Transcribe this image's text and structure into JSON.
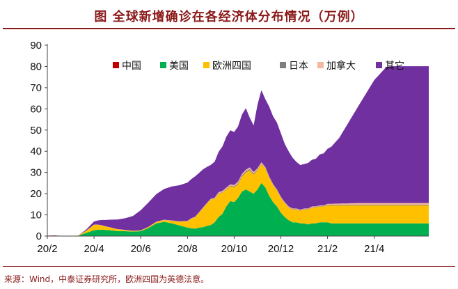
{
  "title": "图 全球新增确诊在各经济体分布情况（万例）",
  "source": "来源：Wind，中泰证券研究所，欧洲四国为英德法意。",
  "chart_data": {
    "type": "area",
    "stacked": true,
    "title": "图 全球新增确诊在各经济体分布情况（万例）",
    "ylim": [
      0,
      90
    ],
    "yticks": [
      0,
      10,
      20,
      30,
      40,
      50,
      60,
      70,
      80,
      90
    ],
    "xtick_labels": [
      "20/2",
      "20/4",
      "20/6",
      "20/8",
      "20/10",
      "20/12",
      "21/2",
      "21/4"
    ],
    "legend_position": "top",
    "x": [
      0,
      0.5,
      1,
      1.5,
      2,
      2.5,
      3,
      3.25,
      3.5,
      3.75,
      4,
      4.5,
      5,
      5.5,
      6,
      6.5,
      7,
      7.5,
      8,
      8.5,
      9,
      9.25,
      9.5,
      9.75,
      10,
      10.25,
      10.5,
      10.75,
      11,
      11.25,
      11.5,
      11.75,
      12,
      12.25,
      12.5,
      12.75,
      13,
      13.25,
      13.5,
      13.75,
      14,
      14.25,
      14.5,
      14.75,
      15,
      15.25,
      15.5,
      15.75,
      16,
      16.25,
      16.5,
      16.75,
      17,
      17.25,
      17.5,
      17.75,
      18,
      18.25,
      18.5,
      18.75,
      19,
      19.25,
      19.5,
      19.75,
      20,
      20.25,
      20.5,
      20.75,
      21,
      21.25,
      21.5,
      21.75,
      22,
      22.25,
      22.5,
      22.75,
      23,
      23.25,
      23.5,
      23.75,
      24,
      24.25,
      24.5
    ],
    "series": [
      {
        "name": "中国",
        "color": "#c00000",
        "values": [
          0.2,
          0.3,
          0.1,
          0,
          0,
          0,
          0,
          0,
          0,
          0,
          0,
          0,
          0,
          0,
          0,
          0,
          0,
          0,
          0,
          0,
          0,
          0,
          0,
          0,
          0,
          0,
          0,
          0,
          0,
          0,
          0,
          0,
          0,
          0,
          0,
          0,
          0,
          0,
          0,
          0,
          0,
          0,
          0,
          0,
          0,
          0,
          0,
          0,
          0,
          0,
          0,
          0,
          0,
          0,
          0,
          0,
          0,
          0,
          0,
          0,
          0,
          0,
          0,
          0,
          0,
          0,
          0,
          0,
          0,
          0,
          0,
          0,
          0,
          0,
          0,
          0,
          0,
          0,
          0,
          0,
          0,
          0,
          0
        ]
      },
      {
        "name": "美国",
        "color": "#00b050",
        "values": [
          0,
          0,
          0,
          0,
          0.2,
          1.5,
          2.8,
          3.0,
          3.0,
          2.9,
          2.8,
          2.4,
          2.3,
          2.1,
          2.3,
          3.8,
          6.0,
          6.7,
          6.0,
          5.0,
          4.0,
          3.7,
          3.5,
          4.0,
          4.2,
          4.8,
          5.2,
          6.5,
          9.0,
          10.5,
          14.0,
          16.5,
          16.0,
          18.0,
          21.0,
          22.0,
          21.0,
          20.0,
          22.0,
          25.0,
          23.0,
          19.0,
          16.0,
          14.0,
          11.0,
          9.0,
          7.5,
          6.5,
          6.5,
          6.0,
          6.0,
          5.5,
          6.0,
          6.0,
          6.5,
          6.5,
          6.5,
          6.0,
          6.0,
          6.0,
          6.0,
          6.0,
          6.0,
          6.0,
          6.0,
          6.0,
          6.0,
          6.0,
          6.0,
          6.0,
          6.0,
          6.0,
          6.0,
          6.0,
          6.0,
          6.0,
          6.0,
          6.0,
          6.0,
          6.0,
          6.0,
          6.0,
          6.0
        ]
      },
      {
        "name": "欧洲四国",
        "color": "#ffc000",
        "values": [
          0,
          0,
          0,
          0,
          0.1,
          1.0,
          2.5,
          2.3,
          2.0,
          1.6,
          1.3,
          0.8,
          0.5,
          0.3,
          0.3,
          0.5,
          0.6,
          0.8,
          1.2,
          1.8,
          3.0,
          4.5,
          5.5,
          7.0,
          9.0,
          10.5,
          12.0,
          11.0,
          11.0,
          10.0,
          8.0,
          7.0,
          7.0,
          6.5,
          7.0,
          8.0,
          10.0,
          9.0,
          9.0,
          9.0,
          9.0,
          8.5,
          8.0,
          7.5,
          7.0,
          6.5,
          6.0,
          6.0,
          6.0,
          6.0,
          6.5,
          7.0,
          7.5,
          7.5,
          7.5,
          7.5,
          8.0,
          8.5,
          8.5,
          8.5,
          8.5,
          8.5,
          8.5,
          8.5,
          8.5,
          8.5,
          8.5,
          8.5,
          8.5,
          8.5,
          8.5,
          8.5,
          8.5,
          8.5,
          8.5,
          8.5,
          8.5,
          8.5,
          8.5,
          8.5,
          8.5,
          8.5,
          8.5
        ]
      },
      {
        "name": "日本",
        "color": "#7f7f7f",
        "values": [
          0,
          0,
          0,
          0,
          0,
          0,
          0,
          0,
          0,
          0,
          0,
          0,
          0,
          0,
          0,
          0,
          0.1,
          0.1,
          0.1,
          0.1,
          0.1,
          0.1,
          0.1,
          0.1,
          0.1,
          0.1,
          0.1,
          0.2,
          0.2,
          0.2,
          0.3,
          0.3,
          0.4,
          0.5,
          0.6,
          0.6,
          0.6,
          0.5,
          0.4,
          0.3,
          0.2,
          0.2,
          0.2,
          0.2,
          0.2,
          0.2,
          0.2,
          0.2,
          0.2,
          0.2,
          0.2,
          0.2,
          0.2,
          0.2,
          0.2,
          0.2,
          0.3,
          0.3,
          0.3,
          0.3,
          0.3,
          0.3,
          0.3,
          0.3,
          0.3,
          0.3,
          0.3,
          0.3,
          0.3,
          0.3,
          0.3,
          0.3,
          0.3,
          0.3,
          0.3,
          0.3,
          0.3,
          0.3,
          0.3,
          0.3,
          0.3,
          0.3,
          0.3
        ]
      },
      {
        "name": "加拿大",
        "color": "#f4b8a0",
        "values": [
          0,
          0,
          0,
          0,
          0,
          0.1,
          0.1,
          0.1,
          0.1,
          0.1,
          0.1,
          0.1,
          0.1,
          0.1,
          0.1,
          0.1,
          0.1,
          0.1,
          0.1,
          0.1,
          0.1,
          0.1,
          0.1,
          0.2,
          0.2,
          0.2,
          0.3,
          0.4,
          0.5,
          0.6,
          0.6,
          0.6,
          0.7,
          0.7,
          0.7,
          0.7,
          0.8,
          0.7,
          0.6,
          0.5,
          0.4,
          0.4,
          0.3,
          0.3,
          0.3,
          0.3,
          0.3,
          0.3,
          0.3,
          0.3,
          0.3,
          0.3,
          0.3,
          0.3,
          0.3,
          0.3,
          0.4,
          0.4,
          0.5,
          0.5,
          0.6,
          0.6,
          0.7,
          0.7,
          0.8,
          0.8,
          0.8,
          0.8,
          0.8,
          0.8,
          0.8,
          0.8,
          0.8,
          0.8,
          0.8,
          0.8,
          0.8,
          0.8,
          0.8,
          0.8,
          0.8,
          0.8,
          0.8
        ]
      },
      {
        "name": "其它",
        "color": "#7030a0",
        "values": [
          0,
          0,
          0,
          0,
          0,
          0.5,
          1.5,
          2.0,
          2.5,
          3.0,
          3.5,
          4.5,
          5.5,
          7.0,
          9.5,
          11.5,
          13.0,
          14.5,
          16.0,
          17.0,
          18.0,
          18.5,
          19.0,
          18.5,
          18.0,
          17.0,
          16.0,
          17.0,
          19.0,
          21.0,
          24.0,
          25.5,
          25.0,
          26.0,
          28.0,
          29.0,
          23.5,
          22.0,
          30.0,
          34.0,
          32.0,
          33.0,
          32.0,
          31.5,
          30.0,
          27.5,
          26.0,
          24.0,
          22.0,
          21.0,
          21.0,
          21.5,
          22.0,
          22.5,
          24.0,
          24.5,
          26.0,
          27.0,
          29.0,
          31.0,
          34.0,
          37.0,
          40.0,
          43.0,
          46.0,
          49.0,
          52.0,
          55.0,
          58.0,
          60.0,
          62.0,
          64.0,
          64.5,
          64.5,
          64.5,
          64.5,
          64.5,
          64.5,
          64.5,
          64.5,
          64.5,
          64.5,
          64.5
        ]
      }
    ]
  },
  "legend": [
    {
      "label": "中国",
      "color": "#c00000"
    },
    {
      "label": "美国",
      "color": "#00b050"
    },
    {
      "label": "欧洲四国",
      "color": "#ffc000"
    },
    {
      "label": "日本",
      "color": "#7f7f7f"
    },
    {
      "label": "加拿大",
      "color": "#f4b8a0"
    },
    {
      "label": "其它",
      "color": "#7030a0"
    }
  ]
}
